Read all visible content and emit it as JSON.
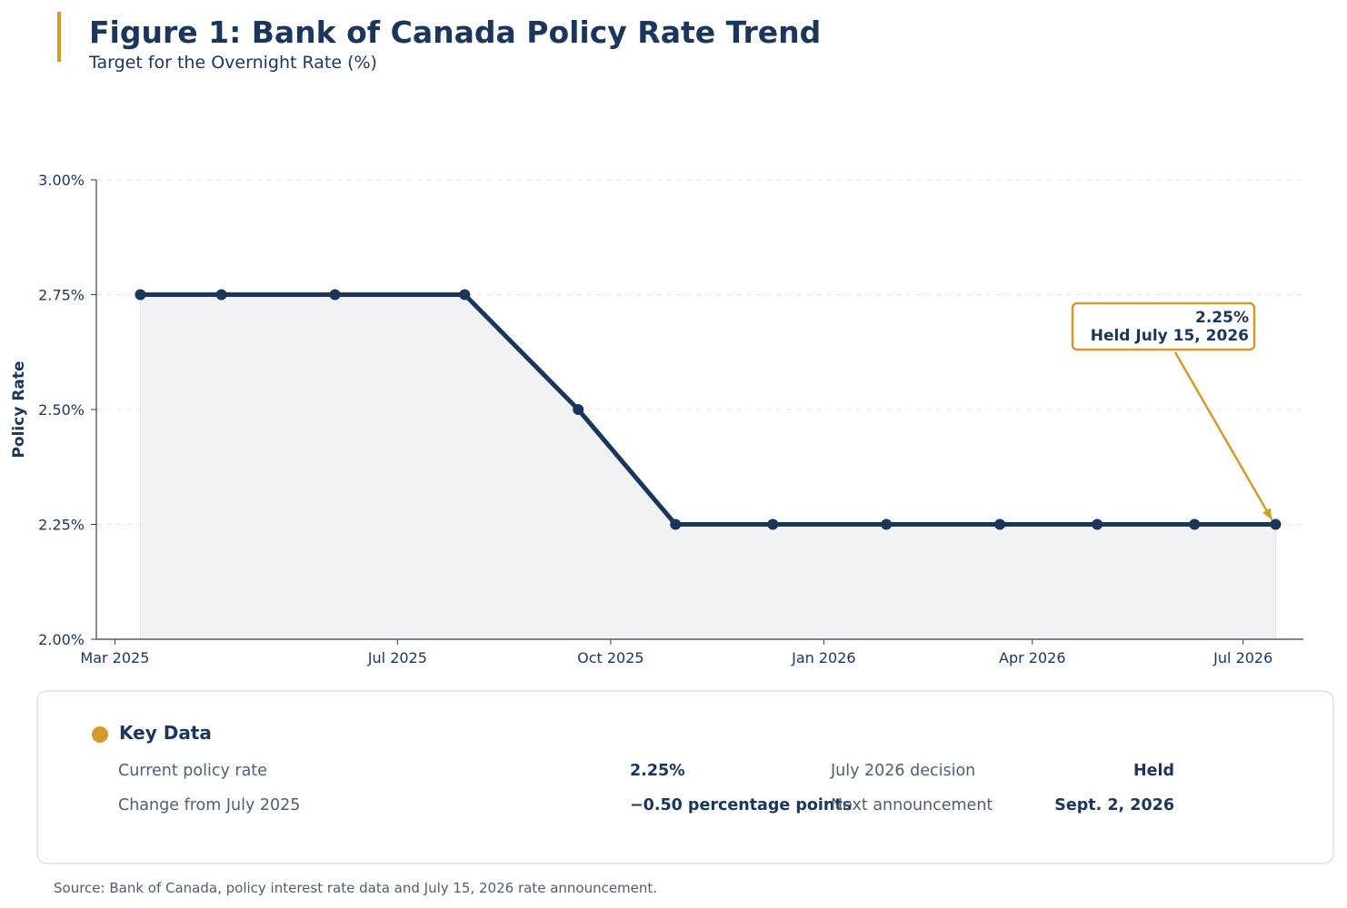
{
  "header": {
    "title": "Figure 1: Bank of Canada Policy Rate Trend",
    "subtitle": "Target for the Overnight Rate (%)"
  },
  "colors": {
    "accent": "#d49a2c",
    "navy": "#1b365d",
    "fill": "#f1f2f4",
    "grid": "#e3e6ea"
  },
  "chart_data": {
    "type": "line",
    "title": "Figure 1: Bank of Canada Policy Rate Trend",
    "subtitle": "Target for the Overnight Rate (%)",
    "xlabel": "",
    "ylabel": "Policy Rate",
    "ylim": [
      2.0,
      3.0
    ],
    "y_ticks": [
      2.0,
      2.25,
      2.5,
      2.75,
      3.0
    ],
    "y_tick_labels": [
      "2.00%",
      "2.25%",
      "2.50%",
      "2.75%",
      "3.00%"
    ],
    "x_range": [
      "2025-02-21",
      "2026-07-27"
    ],
    "x_ticks": [
      "2025-03-01",
      "2025-07-01",
      "2025-10-01",
      "2026-01-01",
      "2026-04-01",
      "2026-07-01"
    ],
    "x_tick_labels": [
      "Mar 2025",
      "Jul 2025",
      "Oct 2025",
      "Jan 2026",
      "Apr 2026",
      "Jul 2026"
    ],
    "grid": "horizontal dashed",
    "area_fill": true,
    "series": [
      {
        "x": [
          "2025-03-12",
          "2025-04-16",
          "2025-06-04",
          "2025-07-30",
          "2025-09-17",
          "2025-10-29",
          "2025-12-10",
          "2026-01-28",
          "2026-03-18",
          "2026-04-29",
          "2026-06-10",
          "2026-07-15"
        ],
        "values": [
          2.75,
          2.75,
          2.75,
          2.75,
          2.5,
          2.25,
          2.25,
          2.25,
          2.25,
          2.25,
          2.25,
          2.25
        ]
      }
    ],
    "annotation": {
      "x": "2026-07-15",
      "y": 2.25,
      "line1": "2.25%",
      "line2": "Held July 15, 2026"
    }
  },
  "key_data": {
    "title": "Key Data",
    "current_rate_label": "Current policy rate",
    "current_rate_value": "2.25%",
    "change_label": "Change from July 2025",
    "change_value": "−0.50 percentage points",
    "decision_label": "July 2026 decision",
    "decision_value": "Held",
    "next_label": "Next announcement",
    "next_value": "Sept. 2, 2026"
  },
  "source": "Source: Bank of Canada, policy interest rate data and July 15, 2026 rate announcement."
}
